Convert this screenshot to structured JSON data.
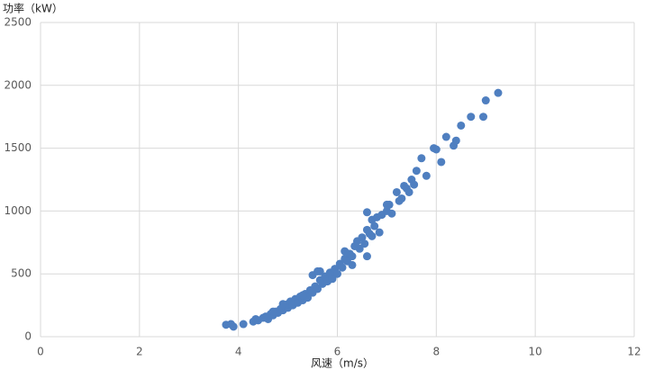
{
  "chart_data": {
    "type": "scatter",
    "y_label": "功率（kW）",
    "x_label": "风速（m/s）",
    "color": "#4f7fc0",
    "grid": true,
    "xlim": [
      0,
      12
    ],
    "xticks": [
      0,
      2,
      4,
      6,
      8,
      10,
      12
    ],
    "ylim": [
      0,
      2500
    ],
    "yticks": [
      0,
      500,
      1000,
      1500,
      2000,
      2500
    ],
    "x": [
      3.75,
      3.85,
      3.9,
      4.1,
      4.3,
      4.35,
      4.4,
      4.5,
      4.55,
      4.6,
      4.65,
      4.7,
      4.75,
      4.8,
      4.85,
      4.9,
      4.95,
      5.0,
      5.0,
      5.05,
      5.1,
      5.15,
      5.2,
      5.25,
      5.3,
      5.35,
      5.4,
      5.45,
      5.5,
      5.5,
      5.55,
      5.6,
      5.65,
      5.65,
      5.7,
      5.75,
      5.8,
      5.85,
      5.9,
      5.95,
      6.0,
      6.05,
      6.1,
      6.15,
      6.15,
      6.2,
      6.25,
      6.3,
      6.35,
      6.4,
      6.45,
      6.5,
      6.55,
      6.6,
      6.6,
      6.65,
      6.7,
      6.75,
      6.8,
      6.85,
      6.9,
      7.0,
      7.05,
      7.1,
      7.2,
      7.25,
      7.3,
      7.4,
      7.45,
      7.5,
      7.55,
      7.6,
      7.7,
      7.8,
      7.95,
      8.0,
      8.1,
      8.2,
      8.35,
      8.4,
      8.5,
      8.7,
      8.95,
      9.0,
      9.25,
      6.6,
      7.0,
      6.3,
      5.9,
      5.3,
      4.9,
      4.7,
      5.6,
      6.7,
      7.35
    ],
    "y": [
      95,
      100,
      80,
      100,
      120,
      140,
      130,
      150,
      160,
      140,
      180,
      170,
      200,
      190,
      220,
      210,
      240,
      230,
      260,
      280,
      250,
      300,
      270,
      320,
      290,
      340,
      310,
      370,
      350,
      490,
      400,
      380,
      450,
      520,
      420,
      480,
      440,
      510,
      470,
      540,
      500,
      580,
      550,
      620,
      680,
      600,
      660,
      640,
      720,
      760,
      700,
      790,
      740,
      850,
      640,
      820,
      930,
      880,
      950,
      830,
      970,
      1000,
      1050,
      980,
      1150,
      1080,
      1100,
      1180,
      1150,
      1250,
      1210,
      1320,
      1420,
      1280,
      1500,
      1490,
      1390,
      1590,
      1520,
      1560,
      1680,
      1750,
      1750,
      1880,
      1940,
      990,
      1050,
      570,
      460,
      330,
      260,
      200,
      520,
      800,
      1200
    ]
  }
}
